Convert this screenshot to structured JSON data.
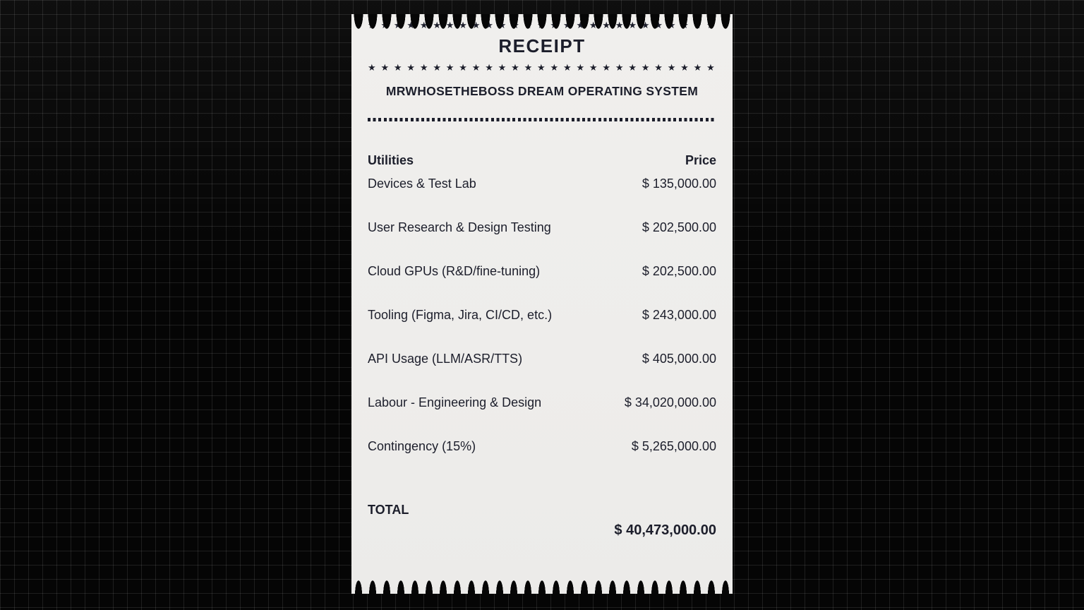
{
  "colors": {
    "background": "#050505",
    "grid_line": "#1f1f1f",
    "paper": "#efeeec",
    "ink": "#1c1e2b"
  },
  "receipt": {
    "stars": "★ ★ ★ ★ ★ ★ ★ ★ ★ ★ ★ ★ ★ ★ ★ ★ ★ ★ ★ ★ ★ ★ ★ ★ ★ ★ ★ ★ ★",
    "title": "RECEIPT",
    "subtitle": "MRWHOSETHEBOSS DREAM OPERATING SYSTEM",
    "columns": {
      "item": "Utilities",
      "price": "Price"
    },
    "items": [
      {
        "label": "Devices & Test Lab",
        "price": "$ 135,000.00"
      },
      {
        "label": "User Research & Design Testing",
        "price": "$ 202,500.00"
      },
      {
        "label": "Cloud GPUs (R&D/fine-tuning)",
        "price": "$ 202,500.00"
      },
      {
        "label": "Tooling (Figma, Jira, CI/CD, etc.)",
        "price": "$ 243,000.00"
      },
      {
        "label": "API Usage (LLM/ASR/TTS)",
        "price": "$ 405,000.00"
      },
      {
        "label": "Labour - Engineering & Design",
        "price": "$ 34,020,000.00"
      },
      {
        "label": "Contingency (15%)",
        "price": "$ 5,265,000.00"
      }
    ],
    "total_label": "TOTAL",
    "total_value": "$ 40,473,000.00"
  }
}
